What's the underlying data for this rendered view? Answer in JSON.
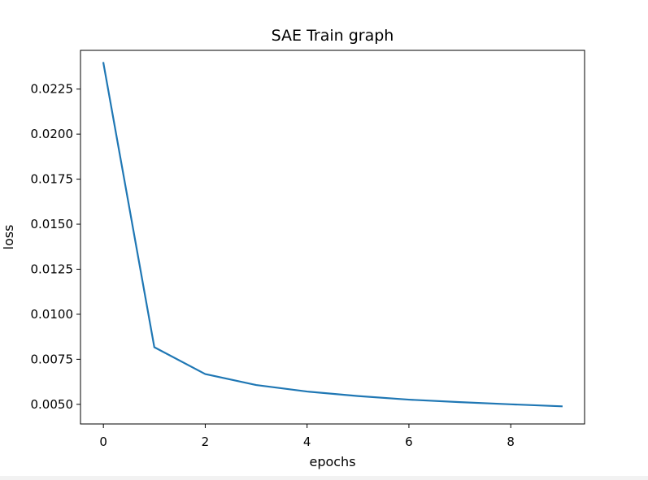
{
  "chart_data": {
    "type": "line",
    "title": "SAE Train graph",
    "xlabel": "epochs",
    "ylabel": "loss",
    "xlim": [
      -0.45,
      9.45
    ],
    "ylim": [
      0.00391,
      0.02465
    ],
    "xticks": [
      0,
      2,
      4,
      6,
      8
    ],
    "xtick_labels": [
      "0",
      "2",
      "4",
      "6",
      "8"
    ],
    "yticks": [
      0.005,
      0.0075,
      0.01,
      0.0125,
      0.015,
      0.0175,
      0.02,
      0.0225
    ],
    "ytick_labels": [
      "0.0050",
      "0.0075",
      "0.0100",
      "0.0125",
      "0.0150",
      "0.0175",
      "0.0200",
      "0.0225"
    ],
    "grid": false,
    "series": [
      {
        "color": "#1f77b4",
        "x": [
          0,
          1,
          2,
          3,
          4,
          5,
          6,
          7,
          8,
          9
        ],
        "y": [
          0.02395,
          0.00817,
          0.00668,
          0.00607,
          0.00571,
          0.00546,
          0.00526,
          0.00512,
          0.005,
          0.00489
        ]
      }
    ]
  }
}
